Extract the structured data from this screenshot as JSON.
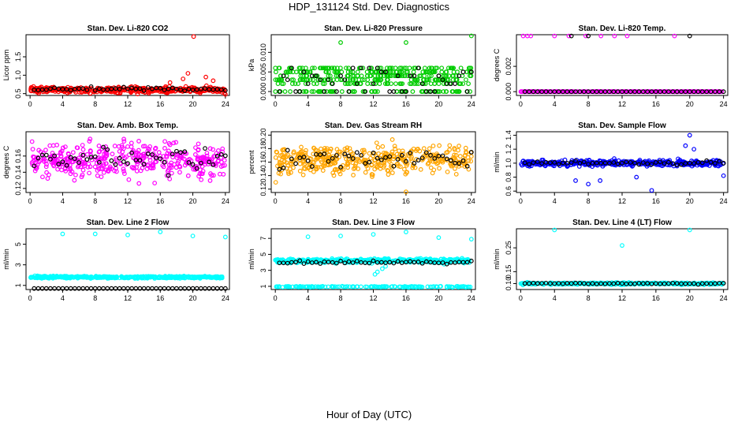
{
  "main_title": "HDP_131124  Std. Dev. Diagnostics",
  "bottom_label": "Hour of Day (UTC)",
  "chart_data": [
    {
      "id": "co2",
      "type": "scatter",
      "title": "Stan. Dev. Li-820 CO2",
      "ylabel": "Licor ppm",
      "xlim": [
        -0.5,
        24.5
      ],
      "ylim": [
        0.45,
        2.1
      ],
      "xticks": [
        0,
        4,
        8,
        12,
        16,
        20,
        24
      ],
      "yticks": [
        {
          "v": 0.5,
          "l": "0.5"
        },
        {
          "v": 1.0,
          "l": "1.0"
        },
        {
          "v": 1.5,
          "l": "1.5"
        }
      ],
      "color": "#ff0000",
      "base": 0.6,
      "spread": 0.12,
      "outliers": [
        [
          20.1,
          2.05
        ],
        [
          19.4,
          1.05
        ],
        [
          18.8,
          0.9
        ],
        [
          21.6,
          0.95
        ],
        [
          22.5,
          0.85
        ],
        [
          17.2,
          0.8
        ],
        [
          24,
          0.48
        ]
      ],
      "black_mean": 0.62
    },
    {
      "id": "pressure",
      "type": "scatter",
      "title": "Stan. Dev. Li-820 Pressure",
      "ylabel": "kPa",
      "xlim": [
        -0.5,
        24.5
      ],
      "ylim": [
        -0.001,
        0.0145
      ],
      "xticks": [
        0,
        4,
        8,
        12,
        16,
        20,
        24
      ],
      "yticks": [
        {
          "v": 0.0,
          "l": "0.000"
        },
        {
          "v": 0.005,
          "l": "0.005"
        },
        {
          "v": 0.01,
          "l": "0.010"
        }
      ],
      "color": "#00cc00",
      "levels": [
        0,
        0.002,
        0.003,
        0.004,
        0.005,
        0.006
      ],
      "outliers": [
        [
          8,
          0.0125
        ],
        [
          16,
          0.0125
        ],
        [
          24,
          0.0142
        ]
      ],
      "black_mean": 0.003
    },
    {
      "id": "temp",
      "type": "scatter",
      "title": "Stan. Dev. Li-820 Temp.",
      "ylabel": "degrees C",
      "xlim": [
        -0.5,
        24.5
      ],
      "ylim": [
        -0.0003,
        0.0045
      ],
      "xticks": [
        0,
        4,
        8,
        12,
        16,
        20,
        24
      ],
      "yticks": [
        {
          "v": 0.0,
          "l": "0.000"
        },
        {
          "v": 0.002,
          "l": "0.002"
        }
      ],
      "color": "#ff00ff",
      "base": 0,
      "spread": 0,
      "outliers": [
        [
          0.3,
          0.0044
        ],
        [
          0.8,
          0.0044
        ],
        [
          1.2,
          0.0044
        ],
        [
          4,
          0.0044
        ],
        [
          5.7,
          0.0044
        ],
        [
          7.7,
          0.0044
        ],
        [
          9.5,
          0.0044
        ],
        [
          11.1,
          0.0044
        ],
        [
          12.6,
          0.0044
        ],
        [
          18.2,
          0.0044
        ]
      ],
      "black_outliers": [
        [
          6,
          0.0044
        ],
        [
          8,
          0.0044
        ],
        [
          20,
          0.0044
        ]
      ],
      "black_mean": 0
    },
    {
      "id": "boxtemp",
      "type": "scatter",
      "title": "Stan. Dev. Amb. Box Temp.",
      "ylabel": "degrees C",
      "xlim": [
        -0.5,
        24.5
      ],
      "ylim": [
        0.115,
        0.19
      ],
      "xticks": [
        0,
        4,
        8,
        12,
        16,
        20,
        24
      ],
      "yticks": [
        {
          "v": 0.12,
          "l": "0.12"
        },
        {
          "v": 0.14,
          "l": "0.14"
        },
        {
          "v": 0.16,
          "l": "0.16"
        }
      ],
      "color": "#ff00ff",
      "base": 0.155,
      "spread": 0.03,
      "outliers": [],
      "black_mean": 0.155
    },
    {
      "id": "rh",
      "type": "scatter",
      "title": "Stan. Dev. Gas Stream RH",
      "ylabel": "percent",
      "xlim": [
        -0.5,
        24.5
      ],
      "ylim": [
        0.115,
        0.205
      ],
      "xticks": [
        0,
        4,
        8,
        12,
        16,
        20,
        24
      ],
      "yticks": [
        {
          "v": 0.12,
          "l": "0.12"
        },
        {
          "v": 0.14,
          "l": "0.14"
        },
        {
          "v": 0.16,
          "l": "0.16"
        },
        {
          "v": 0.18,
          "l": "0.18"
        },
        {
          "v": 0.2,
          "l": "0.20"
        }
      ],
      "color": "#ffa500",
      "base": 0.163,
      "spread": 0.03,
      "outliers": [
        [
          16,
          0.116
        ]
      ],
      "black_mean": 0.165
    },
    {
      "id": "sampleflow",
      "type": "scatter",
      "title": "Stan. Dev. Sample Flow",
      "ylabel": "ml/min",
      "xlim": [
        -0.5,
        24.5
      ],
      "ylim": [
        0.58,
        1.45
      ],
      "xticks": [
        0,
        4,
        8,
        12,
        16,
        20,
        24
      ],
      "yticks": [
        {
          "v": 0.6,
          "l": "0.6"
        },
        {
          "v": 0.8,
          "l": "0.8"
        },
        {
          "v": 1.0,
          "l": "1.0"
        },
        {
          "v": 1.2,
          "l": "1.2"
        },
        {
          "v": 1.4,
          "l": "1.4"
        }
      ],
      "color": "#0000ff",
      "base": 1.0,
      "spread": 0.06,
      "outliers": [
        [
          20,
          1.4
        ],
        [
          19.5,
          1.25
        ],
        [
          20.5,
          1.2
        ],
        [
          8,
          0.7
        ],
        [
          9.4,
          0.75
        ],
        [
          15.5,
          0.61
        ],
        [
          13.7,
          0.8
        ],
        [
          24,
          0.82
        ],
        [
          6.5,
          0.75
        ]
      ],
      "black_mean": 1.0
    },
    {
      "id": "line2",
      "type": "scatter",
      "title": "Stan. Dev. Line 2 Flow",
      "ylabel": "ml/min",
      "xlim": [
        -0.5,
        24.5
      ],
      "ylim": [
        0.6,
        6.5
      ],
      "xticks": [
        0,
        4,
        8,
        12,
        16,
        20,
        24
      ],
      "yticks": [
        {
          "v": 1,
          "l": "1"
        },
        {
          "v": 3,
          "l": "3"
        },
        {
          "v": 5,
          "l": "5"
        }
      ],
      "color": "#00ffff",
      "base": 1.8,
      "spread": 0.15,
      "outliers": [
        [
          4,
          6.0
        ],
        [
          8,
          6.0
        ],
        [
          12,
          5.9
        ],
        [
          16,
          6.2
        ],
        [
          20,
          5.8
        ],
        [
          24,
          5.7
        ]
      ],
      "black_mean": 0.7
    },
    {
      "id": "line3",
      "type": "scatter",
      "title": "Stan. Dev. Line 3 Flow",
      "ylabel": "ml/min",
      "xlim": [
        -0.5,
        24.5
      ],
      "ylim": [
        0.6,
        8.2
      ],
      "xticks": [
        0,
        4,
        8,
        12,
        16,
        20,
        24
      ],
      "yticks": [
        {
          "v": 1,
          "l": "1"
        },
        {
          "v": 3,
          "l": "3"
        },
        {
          "v": 5,
          "l": "5"
        },
        {
          "v": 7,
          "l": "7"
        }
      ],
      "color": "#00ffff",
      "base": 4.2,
      "spread": 0.4,
      "outliers": [
        [
          4,
          7.2
        ],
        [
          8,
          7.3
        ],
        [
          12,
          7.5
        ],
        [
          16,
          7.8
        ],
        [
          20,
          7.1
        ],
        [
          24,
          6.9
        ],
        [
          12.5,
          2.8
        ],
        [
          13.1,
          3.2
        ],
        [
          12.2,
          2.5
        ],
        [
          13.5,
          3.5
        ]
      ],
      "black_mean": 4.0
    },
    {
      "id": "line4",
      "type": "scatter",
      "title": "Stan. Dev. Line 4 (LT) Flow",
      "ylabel": "ml/min",
      "xlim": [
        -0.5,
        24.5
      ],
      "ylim": [
        0.075,
        0.33
      ],
      "xticks": [
        0,
        4,
        8,
        12,
        16,
        20,
        24
      ],
      "yticks": [
        {
          "v": 0.1,
          "l": "0.10"
        },
        {
          "v": 0.15,
          "l": "0.15"
        },
        {
          "v": 0.25,
          "l": "0.25"
        }
      ],
      "color": "#00ffff",
      "base": 0.1,
      "spread": 0.006,
      "outliers": [
        [
          4,
          0.325
        ],
        [
          12,
          0.26
        ],
        [
          20,
          0.325
        ]
      ],
      "black_mean": 0.1
    }
  ]
}
